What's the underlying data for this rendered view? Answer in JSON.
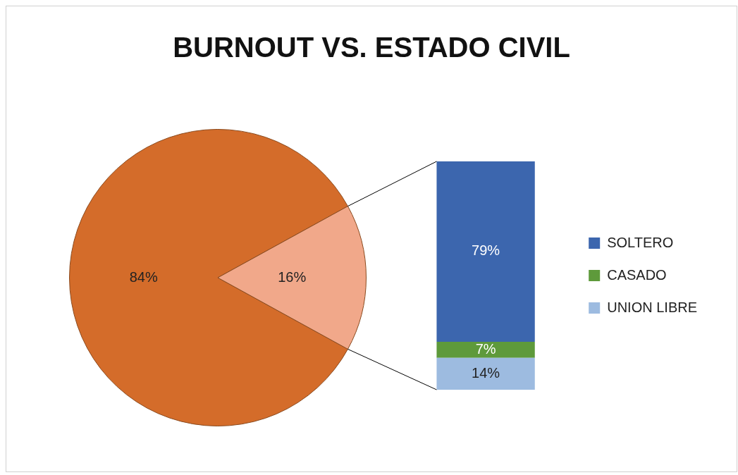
{
  "chart_data": [
    {
      "type": "pie",
      "title": "BURNOUT VS. ESTADO CIVIL",
      "categories": [
        null,
        null
      ],
      "values": [
        84,
        16
      ],
      "value_labels": [
        "84%",
        "16%"
      ],
      "colors": [
        "#d46c2a",
        "#f1a88a"
      ],
      "legend": false
    },
    {
      "type": "bar",
      "stacked": true,
      "categories": [
        null
      ],
      "series": [
        {
          "name": "UNION LIBRE",
          "color": "#9dbbe0",
          "values": [
            14
          ],
          "value_labels": [
            "14%"
          ]
        },
        {
          "name": "CASADO",
          "color": "#5e9a3b",
          "values": [
            7
          ],
          "value_labels": [
            "7%"
          ]
        },
        {
          "name": "SOLTERO",
          "color": "#3c66ae",
          "values": [
            79
          ],
          "value_labels": [
            "79%"
          ]
        }
      ],
      "legend": "right",
      "tick_labels": false
    }
  ]
}
